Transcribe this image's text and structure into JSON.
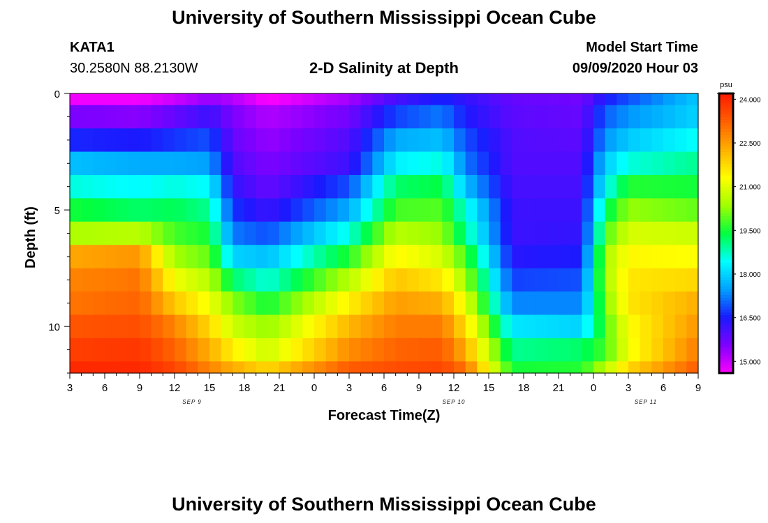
{
  "header": {
    "title": "University of Southern Mississippi Ocean Cube",
    "station_id": "KATA1",
    "coordinates": "30.2580N 88.2130W",
    "plot_title": "2-D Salinity at Depth",
    "model_start_label": "Model Start Time",
    "model_start_value": "09/09/2020 Hour 03"
  },
  "footer": {
    "title": "University of Southern Mississippi Ocean Cube"
  },
  "chart_data": {
    "type": "heatmap",
    "title": "2-D Salinity at Depth",
    "xlabel": "Forecast Time(Z)",
    "ylabel": "Depth (ft)",
    "x_hours": [
      0,
      54
    ],
    "x_ticks": [
      "3",
      "6",
      "9",
      "12",
      "15",
      "18",
      "21",
      "0",
      "3",
      "6",
      "9",
      "12",
      "15",
      "18",
      "21",
      "0",
      "3",
      "6",
      "9"
    ],
    "date_labels": [
      {
        "hour": 10.5,
        "label": "SEP 9"
      },
      {
        "hour": 33,
        "label": "SEP 10"
      },
      {
        "hour": 49.5,
        "label": "SEP 11"
      }
    ],
    "y_range": [
      0,
      12
    ],
    "y_ticks": [
      0,
      5,
      10
    ],
    "depth_layers": [
      0,
      1,
      2,
      3,
      4,
      5,
      6,
      7,
      8,
      9,
      10,
      11,
      12
    ],
    "colorbar": {
      "unit": "psu",
      "min": 14.6,
      "max": 24.2,
      "ticks": [
        "15.000",
        "16.500",
        "18.000",
        "19.500",
        "21.000",
        "22.500",
        "24.000"
      ],
      "colors": [
        "#ff00ff",
        "#8000ff",
        "#1a1aff",
        "#00a0ff",
        "#00ffff",
        "#00ff40",
        "#a0ff00",
        "#ffff00",
        "#ffb000",
        "#ff6000",
        "#ff1a00"
      ]
    },
    "salinity_profiles": {
      "note": "salinity (psu) per depth layer at key forecast hours (hour 0 = Sep 9 03Z)",
      "keyframes": [
        {
          "hour": 0,
          "values": [
            14.7,
            15.6,
            16.6,
            17.8,
            18.6,
            19.5,
            20.5,
            22.4,
            22.8,
            23.0,
            23.4,
            23.7,
            24.0
          ]
        },
        {
          "hour": 6,
          "values": [
            14.7,
            15.5,
            16.5,
            17.6,
            18.4,
            19.2,
            20.6,
            22.6,
            23.0,
            23.2,
            23.5,
            23.8,
            24.0
          ]
        },
        {
          "hour": 9,
          "values": [
            15.0,
            15.8,
            16.7,
            17.6,
            18.6,
            19.3,
            19.8,
            20.4,
            21.2,
            22.0,
            22.8,
            23.2,
            23.6
          ]
        },
        {
          "hour": 12,
          "values": [
            15.4,
            16.2,
            16.9,
            17.5,
            18.4,
            19.0,
            19.5,
            20.0,
            20.6,
            21.2,
            21.8,
            22.3,
            22.8
          ]
        },
        {
          "hour": 14,
          "values": [
            15.2,
            15.6,
            15.8,
            16.0,
            16.3,
            16.7,
            17.2,
            18.0,
            19.2,
            20.2,
            20.8,
            21.5,
            22.3
          ]
        },
        {
          "hour": 17,
          "values": [
            14.6,
            15.2,
            15.4,
            15.6,
            15.8,
            16.2,
            16.9,
            17.8,
            18.6,
            19.5,
            20.3,
            20.8,
            21.8
          ]
        },
        {
          "hour": 24,
          "values": [
            15.3,
            15.7,
            16.0,
            16.2,
            16.9,
            17.6,
            18.6,
            19.6,
            20.6,
            21.5,
            22.2,
            22.7,
            23.3
          ]
        },
        {
          "hour": 28,
          "values": [
            16.1,
            16.8,
            17.6,
            18.3,
            19.2,
            19.8,
            20.6,
            21.4,
            22.0,
            22.5,
            22.9,
            23.2,
            23.5
          ]
        },
        {
          "hour": 32,
          "values": [
            16.6,
            17.2,
            17.8,
            18.6,
            19.4,
            19.9,
            20.3,
            20.9,
            21.6,
            22.3,
            22.9,
            23.3,
            23.6
          ]
        },
        {
          "hour": 34,
          "values": [
            16.3,
            16.5,
            16.9,
            17.2,
            17.8,
            18.6,
            19.0,
            19.8,
            20.4,
            21.1,
            21.7,
            22.3,
            23.0
          ]
        },
        {
          "hour": 38,
          "values": [
            15.8,
            15.9,
            16.0,
            16.0,
            16.1,
            16.2,
            16.2,
            16.4,
            16.8,
            17.3,
            18.2,
            19.0,
            19.5
          ]
        },
        {
          "hour": 44,
          "values": [
            15.7,
            15.8,
            15.9,
            16.0,
            16.1,
            16.2,
            16.3,
            16.5,
            16.9,
            17.3,
            18.0,
            19.2,
            19.6
          ]
        },
        {
          "hour": 46,
          "values": [
            16.5,
            17.0,
            17.4,
            17.9,
            18.4,
            19.2,
            19.8,
            20.4,
            20.4,
            20.1,
            19.8,
            19.8,
            20.6
          ]
        },
        {
          "hour": 48,
          "values": [
            16.9,
            17.4,
            17.9,
            18.6,
            19.6,
            20.3,
            20.9,
            21.4,
            21.6,
            21.6,
            21.3,
            21.2,
            21.8
          ]
        },
        {
          "hour": 54,
          "values": [
            17.9,
            18.0,
            18.5,
            19.0,
            19.5,
            20.0,
            20.8,
            21.3,
            21.8,
            22.3,
            22.6,
            22.9,
            23.3
          ]
        }
      ]
    }
  }
}
